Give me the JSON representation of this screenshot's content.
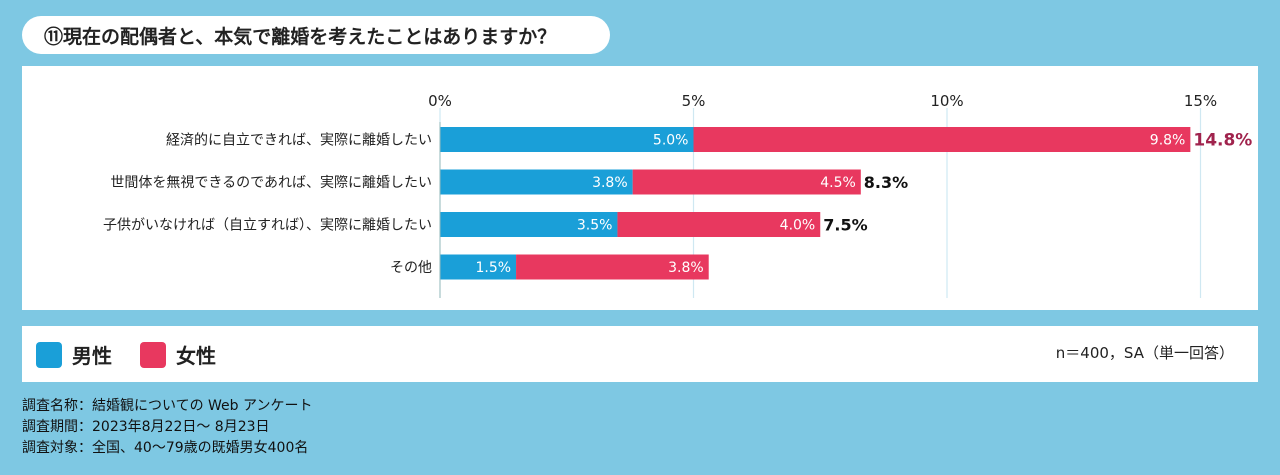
{
  "title": "⑪現在の配偶者と、本気で離婚を考えたことはありますか？",
  "legend": [
    {
      "label": "男性",
      "color": "#1a9fd8"
    },
    {
      "label": "女性",
      "color": "#e8385f"
    }
  ],
  "sample_note": "n＝400，SA（単一回答）",
  "footer": {
    "survey_name": "調査名称：結婚観についての Web アンケート",
    "survey_period": "調査期間：2023年8月22日～ 8月23日",
    "survey_target": "調査対象：全国、40～79歳の既婚男女400名"
  },
  "chart_data": {
    "type": "bar",
    "orientation": "horizontal",
    "stacked": true,
    "title": "⑪現在の配偶者と、本気で離婚を考えたことはありますか？",
    "x_ticks": [
      "0%",
      "5%",
      "10%",
      "15%"
    ],
    "xlim": [
      0,
      16.2
    ],
    "grid": true,
    "categories": [
      "経済的に自立できれば、実際に離婚したい",
      "世間体を無視できるのであれば、実際に離婚したい",
      "子供がいなければ（自立すれば）、実際に離婚したい",
      "その他"
    ],
    "series": [
      {
        "name": "男性",
        "color": "#1a9fd8",
        "values": [
          5.0,
          3.8,
          3.5,
          1.5
        ],
        "labels": [
          "5.0%",
          "3.8%",
          "3.5%",
          "1.5%"
        ]
      },
      {
        "name": "女性",
        "color": "#e8385f",
        "values": [
          9.8,
          4.5,
          4.0,
          3.8
        ],
        "labels": [
          "9.8%",
          "4.5%",
          "4.0%",
          "3.8%"
        ]
      }
    ],
    "totals": [
      "14.8%",
      "8.3%",
      "7.5%",
      ""
    ],
    "highlight_total_color": "#a0234d",
    "total_color": "#111111"
  }
}
